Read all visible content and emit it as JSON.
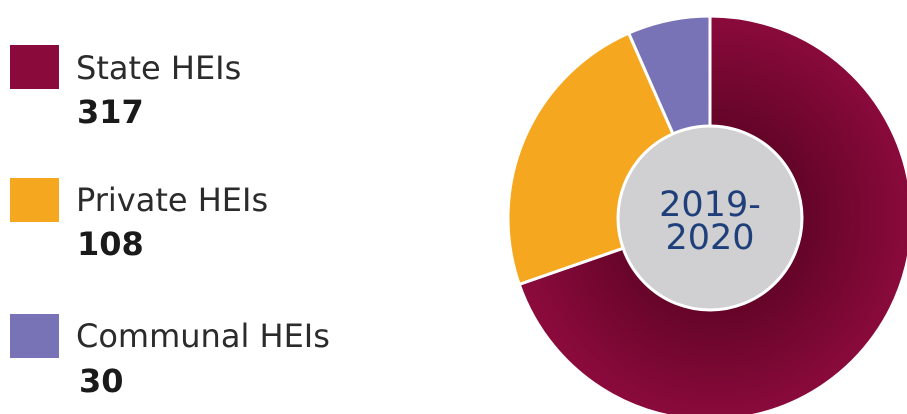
{
  "chart_data": {
    "type": "pie",
    "center_label": [
      "2019-",
      "2020"
    ],
    "slices": [
      {
        "label": "State HEIs",
        "value": 317,
        "value_label": "317",
        "color": "#8a0a3c"
      },
      {
        "label": "Private HEIs",
        "value": 108,
        "value_label": "108",
        "color": "#f5a81f"
      },
      {
        "label": "Communal HEIs",
        "value": 30,
        "value_label": "30",
        "color": "#7873b6"
      }
    ],
    "legend_position": "left",
    "center_color": "#d0d0d2",
    "border_color": "#ffffff"
  }
}
